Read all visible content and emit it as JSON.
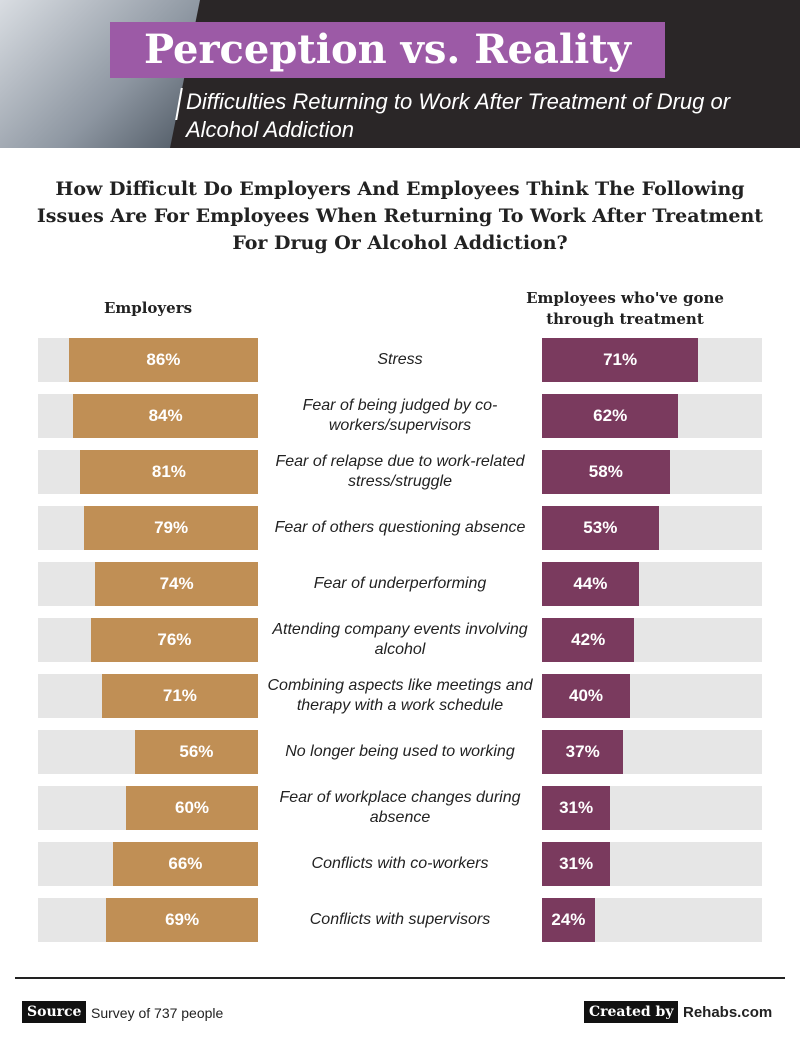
{
  "chart_data": {
    "type": "diverging_bar",
    "title": "Perception vs. Reality",
    "subtitle": "Difficulties Returning to Work After Treatment of Drug or Alcohol Addiction",
    "question": "How Difficult Do Employers And Employees Think The Following Issues Are For Employees When Returning To Work After Treatment For Drug Or Alcohol Addiction?",
    "categories": [
      "Stress",
      "Fear of being judged by co-workers/supervisors",
      "Fear of relapse due to work-related stress/struggle",
      "Fear of others questioning absence",
      "Fear of underperforming",
      "Attending company events involving alcohol",
      "Combining aspects like meetings and therapy with a work schedule",
      "No longer being used to working",
      "Fear of workplace changes during absence",
      "Conflicts with co-workers",
      "Conflicts with supervisors"
    ],
    "xlim": [
      0,
      100
    ],
    "series": [
      {
        "name": "Employers",
        "color": "#c08f55",
        "side": "left",
        "values": [
          86,
          84,
          81,
          79,
          74,
          76,
          71,
          56,
          60,
          66,
          69
        ],
        "value_labels": [
          "86%",
          "84%",
          "81%",
          "79%",
          "74%",
          "76%",
          "71%",
          "56%",
          "60%",
          "66%",
          "69%"
        ]
      },
      {
        "name": "Employees who've gone through treatment",
        "color": "#7a3a5e",
        "side": "right",
        "values": [
          71,
          62,
          58,
          53,
          44,
          42,
          40,
          37,
          31,
          31,
          24
        ],
        "value_labels": [
          "71%",
          "62%",
          "58%",
          "53%",
          "44%",
          "42%",
          "40%",
          "37%",
          "31%",
          "31%",
          "24%"
        ]
      }
    ],
    "track_color": "#e6e6e6",
    "source_label": "Source",
    "source": "Survey of 737 people",
    "credit_label": "Created by",
    "credit": "Rehabs.com"
  }
}
